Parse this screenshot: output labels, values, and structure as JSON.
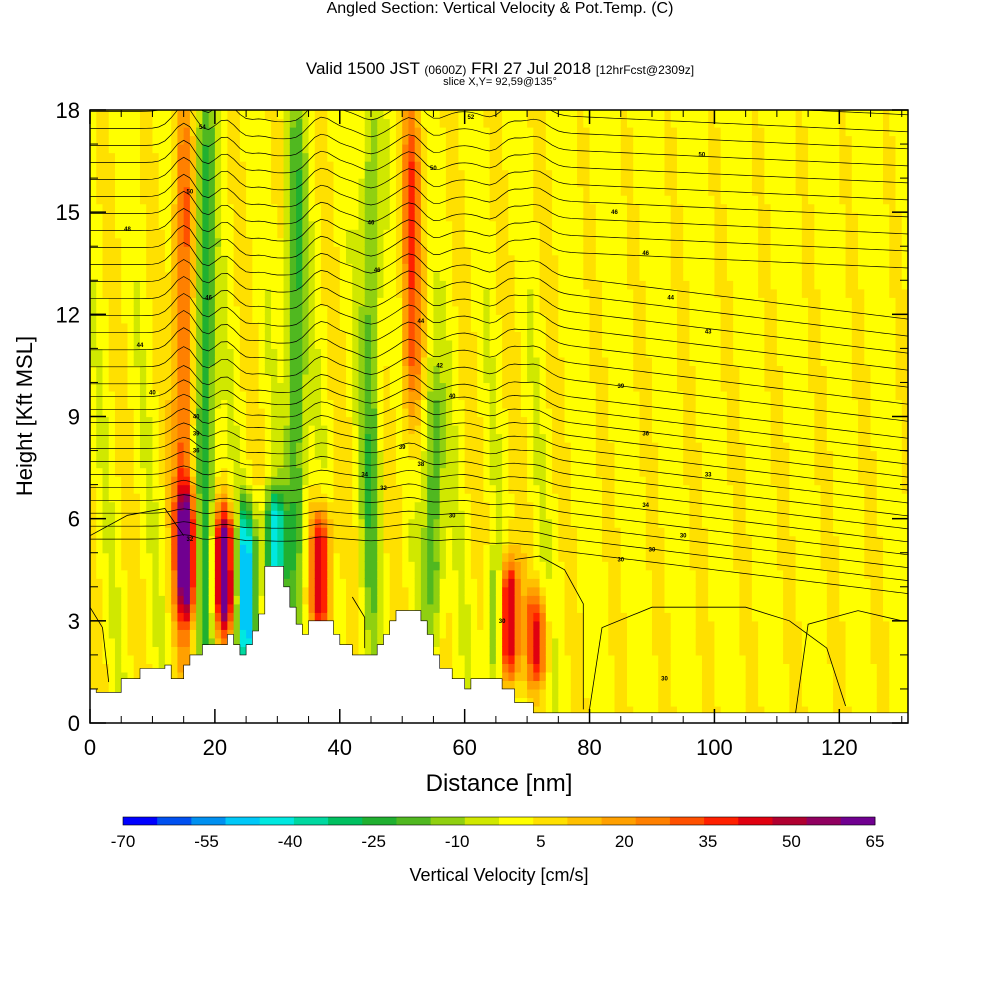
{
  "title": {
    "main": "Angled Section: Vertical Velocity & Pot.Temp.",
    "main_tag": "(C)",
    "valid_prefix": "Valid 1500 JST",
    "valid_utc": "(0600Z)",
    "valid_date": "FRI 27 Jul 2018",
    "forecast": "[12hrFcst@2309z]",
    "slice": "slice X,Y= 92,59@135°"
  },
  "chart_data": {
    "type": "heatmap",
    "xlabel": "Distance [nm]",
    "ylabel": "Height [Kft MSL]",
    "xlim": [
      0,
      131
    ],
    "ylim": [
      0,
      18
    ],
    "x_ticks": [
      "0",
      "20",
      "40",
      "60",
      "80",
      "100",
      "120"
    ],
    "y_ticks": [
      "0",
      "3",
      "6",
      "9",
      "12",
      "15",
      "18"
    ],
    "colorbar": {
      "label": "Vertical Velocity [cm/s]",
      "ticks": [
        "-70",
        "-55",
        "-40",
        "-25",
        "-10",
        "5",
        "20",
        "35",
        "50",
        "65"
      ],
      "min": -70,
      "max": 65,
      "colors": [
        "#0000ff",
        "#0050f0",
        "#0090f0",
        "#00c8f8",
        "#00e8e0",
        "#00d8a0",
        "#00c060",
        "#20b030",
        "#50b820",
        "#90d010",
        "#d0e800",
        "#ffff00",
        "#ffe000",
        "#ffc000",
        "#ffa000",
        "#ff8000",
        "#ff5000",
        "#ff2000",
        "#e00010",
        "#b00030",
        "#900060",
        "#700090"
      ]
    },
    "background_value": 2,
    "updraft_columns": [
      {
        "x": 15,
        "y_bottom": 3,
        "y_top": 18,
        "peak": 30
      },
      {
        "x": 15.5,
        "y_bottom": 3.5,
        "y_top": 6.5,
        "peak": 50
      },
      {
        "x": 21.5,
        "y_bottom": 3,
        "y_top": 6,
        "peak": 62
      },
      {
        "x": 37,
        "y_bottom": 3,
        "y_top": 6,
        "peak": 45
      },
      {
        "x": 51.5,
        "y_bottom": 9,
        "y_top": 18,
        "peak": 30
      },
      {
        "x": 67,
        "y_bottom": 1.5,
        "y_top": 4.5,
        "peak": 55
      },
      {
        "x": 71.5,
        "y_bottom": 1.5,
        "y_top": 3.5,
        "peak": 35
      }
    ],
    "downdraft_columns": [
      {
        "x": 18.5,
        "y_bottom": 2,
        "y_top": 18,
        "peak": -30
      },
      {
        "x": 25,
        "y_bottom": 2,
        "y_top": 6,
        "peak": -50
      },
      {
        "x": 29.5,
        "y_bottom": 4,
        "y_top": 6.5,
        "peak": -45
      },
      {
        "x": 33,
        "y_bottom": 3,
        "y_top": 18,
        "peak": -25
      },
      {
        "x": 45,
        "y_bottom": 3,
        "y_top": 18,
        "peak": -20
      },
      {
        "x": 55,
        "y_bottom": 3,
        "y_top": 10,
        "peak": -25
      },
      {
        "x": 65,
        "y_bottom": 1.5,
        "y_top": 4.5,
        "peak": -25
      }
    ],
    "potential_temperature_contours": {
      "unit": "C",
      "labels": [
        {
          "x": 18,
          "y": 17.5,
          "text": "54"
        },
        {
          "x": 61,
          "y": 17.8,
          "text": "52"
        },
        {
          "x": 16,
          "y": 15.6,
          "text": "50"
        },
        {
          "x": 55,
          "y": 16.3,
          "text": "50"
        },
        {
          "x": 98,
          "y": 16.7,
          "text": "50"
        },
        {
          "x": 6,
          "y": 14.5,
          "text": "48"
        },
        {
          "x": 45,
          "y": 14.7,
          "text": "46"
        },
        {
          "x": 84,
          "y": 15,
          "text": "46"
        },
        {
          "x": 89,
          "y": 13.8,
          "text": "46"
        },
        {
          "x": 46,
          "y": 13.3,
          "text": "46"
        },
        {
          "x": 19,
          "y": 12.5,
          "text": "46"
        },
        {
          "x": 93,
          "y": 12.5,
          "text": "44"
        },
        {
          "x": 53,
          "y": 11.8,
          "text": "44"
        },
        {
          "x": 99,
          "y": 11.5,
          "text": "43"
        },
        {
          "x": 8,
          "y": 11.1,
          "text": "44"
        },
        {
          "x": 56,
          "y": 10.5,
          "text": "42"
        },
        {
          "x": 85,
          "y": 9.9,
          "text": "39"
        },
        {
          "x": 10,
          "y": 9.7,
          "text": "40"
        },
        {
          "x": 58,
          "y": 9.6,
          "text": "40"
        },
        {
          "x": 17,
          "y": 9,
          "text": "40"
        },
        {
          "x": 17,
          "y": 8.5,
          "text": "39"
        },
        {
          "x": 89,
          "y": 8.5,
          "text": "36"
        },
        {
          "x": 50,
          "y": 8.1,
          "text": "39"
        },
        {
          "x": 17,
          "y": 8,
          "text": "36"
        },
        {
          "x": 53,
          "y": 7.6,
          "text": "38"
        },
        {
          "x": 44,
          "y": 7.3,
          "text": "34"
        },
        {
          "x": 99,
          "y": 7.3,
          "text": "33"
        },
        {
          "x": 47,
          "y": 6.9,
          "text": "32"
        },
        {
          "x": 89,
          "y": 6.4,
          "text": "34"
        },
        {
          "x": 58,
          "y": 6.1,
          "text": "30"
        },
        {
          "x": 95,
          "y": 5.5,
          "text": "30"
        },
        {
          "x": 16,
          "y": 5.4,
          "text": "32"
        },
        {
          "x": 90,
          "y": 5.1,
          "text": "30"
        },
        {
          "x": 85,
          "y": 4.8,
          "text": "30"
        },
        {
          "x": 66,
          "y": 3,
          "text": "30"
        },
        {
          "x": 92,
          "y": 1.3,
          "text": "30"
        }
      ]
    },
    "terrain_profile": [
      [
        0,
        0
      ],
      [
        0,
        1
      ],
      [
        1,
        1
      ],
      [
        1,
        0.9
      ],
      [
        5,
        0.9
      ],
      [
        5,
        1.3
      ],
      [
        8,
        1.3
      ],
      [
        8,
        1.6
      ],
      [
        12,
        1.6
      ],
      [
        12,
        1.7
      ],
      [
        13,
        1.7
      ],
      [
        13,
        1.3
      ],
      [
        15,
        1.3
      ],
      [
        15,
        1.7
      ],
      [
        16,
        1.7
      ],
      [
        16,
        2.0
      ],
      [
        18,
        2.0
      ],
      [
        18,
        2.3
      ],
      [
        22,
        2.3
      ],
      [
        22,
        2.6
      ],
      [
        23,
        2.6
      ],
      [
        23,
        2.3
      ],
      [
        24,
        2.3
      ],
      [
        24,
        2.0
      ],
      [
        25,
        2.0
      ],
      [
        25,
        2.3
      ],
      [
        26,
        2.3
      ],
      [
        26,
        2.7
      ],
      [
        27,
        2.7
      ],
      [
        27,
        3.2
      ],
      [
        28,
        3.2
      ],
      [
        28,
        4.6
      ],
      [
        31,
        4.6
      ],
      [
        31,
        4.0
      ],
      [
        32,
        4.0
      ],
      [
        32,
        3.4
      ],
      [
        33,
        3.4
      ],
      [
        33,
        2.9
      ],
      [
        34,
        2.9
      ],
      [
        34,
        2.6
      ],
      [
        35,
        2.6
      ],
      [
        35,
        3.0
      ],
      [
        39,
        3.0
      ],
      [
        39,
        2.6
      ],
      [
        40,
        2.6
      ],
      [
        40,
        2.3
      ],
      [
        42,
        2.3
      ],
      [
        42,
        2.0
      ],
      [
        46,
        2.0
      ],
      [
        46,
        2.3
      ],
      [
        47,
        2.3
      ],
      [
        47,
        2.6
      ],
      [
        48,
        2.6
      ],
      [
        48,
        3.0
      ],
      [
        49,
        3.0
      ],
      [
        49,
        3.3
      ],
      [
        53,
        3.3
      ],
      [
        53,
        3.0
      ],
      [
        54,
        3.0
      ],
      [
        54,
        2.6
      ],
      [
        55,
        2.6
      ],
      [
        55,
        2.0
      ],
      [
        56,
        2.0
      ],
      [
        56,
        1.6
      ],
      [
        58,
        1.6
      ],
      [
        58,
        1.3
      ],
      [
        60,
        1.3
      ],
      [
        60,
        1.0
      ],
      [
        61,
        1.0
      ],
      [
        61,
        1.3
      ],
      [
        66,
        1.3
      ],
      [
        66,
        1.0
      ],
      [
        68,
        1.0
      ],
      [
        68,
        0.6
      ],
      [
        71,
        0.6
      ],
      [
        71,
        0.3
      ],
      [
        131,
        0.3
      ],
      [
        131,
        0
      ]
    ]
  }
}
